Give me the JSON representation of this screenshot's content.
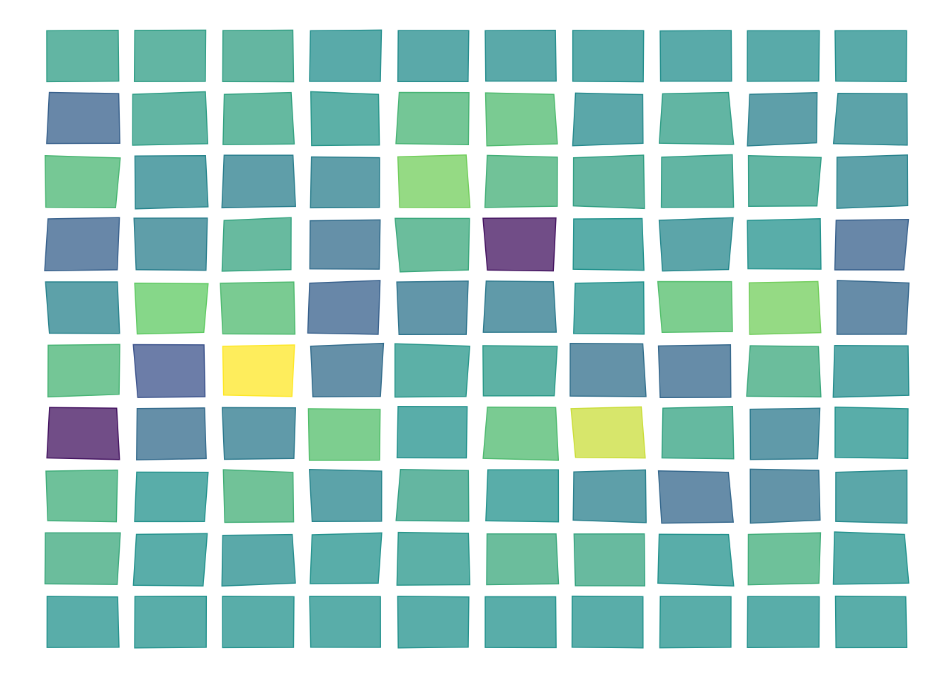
{
  "chart_data": {
    "type": "heatmap",
    "title": "",
    "xlabel": "",
    "ylabel": "",
    "colormap": "viridis",
    "grid": false,
    "rows": 10,
    "cols": 10,
    "values": [
      [
        0.55,
        0.55,
        0.56,
        0.49,
        0.48,
        0.48,
        0.49,
        0.49,
        0.49,
        0.49
      ],
      [
        0.3,
        0.55,
        0.57,
        0.52,
        0.65,
        0.68,
        0.47,
        0.55,
        0.43,
        0.45
      ],
      [
        0.66,
        0.45,
        0.42,
        0.42,
        0.78,
        0.63,
        0.56,
        0.55,
        0.55,
        0.44
      ],
      [
        0.3,
        0.42,
        0.58,
        0.35,
        0.6,
        0.05,
        0.5,
        0.46,
        0.5,
        0.3
      ],
      [
        0.44,
        0.75,
        0.68,
        0.3,
        0.38,
        0.4,
        0.5,
        0.7,
        0.78,
        0.33
      ],
      [
        0.65,
        0.25,
        1.0,
        0.35,
        0.52,
        0.53,
        0.36,
        0.33,
        0.6,
        0.48
      ],
      [
        0.05,
        0.34,
        0.4,
        0.7,
        0.5,
        0.68,
        0.92,
        0.57,
        0.4,
        0.5
      ],
      [
        0.62,
        0.5,
        0.63,
        0.45,
        0.56,
        0.5,
        0.43,
        0.33,
        0.37,
        0.47
      ],
      [
        0.6,
        0.5,
        0.48,
        0.5,
        0.52,
        0.6,
        0.58,
        0.5,
        0.62,
        0.5
      ],
      [
        0.5,
        0.5,
        0.5,
        0.5,
        0.5,
        0.5,
        0.5,
        0.5,
        0.5,
        0.5
      ]
    ]
  }
}
